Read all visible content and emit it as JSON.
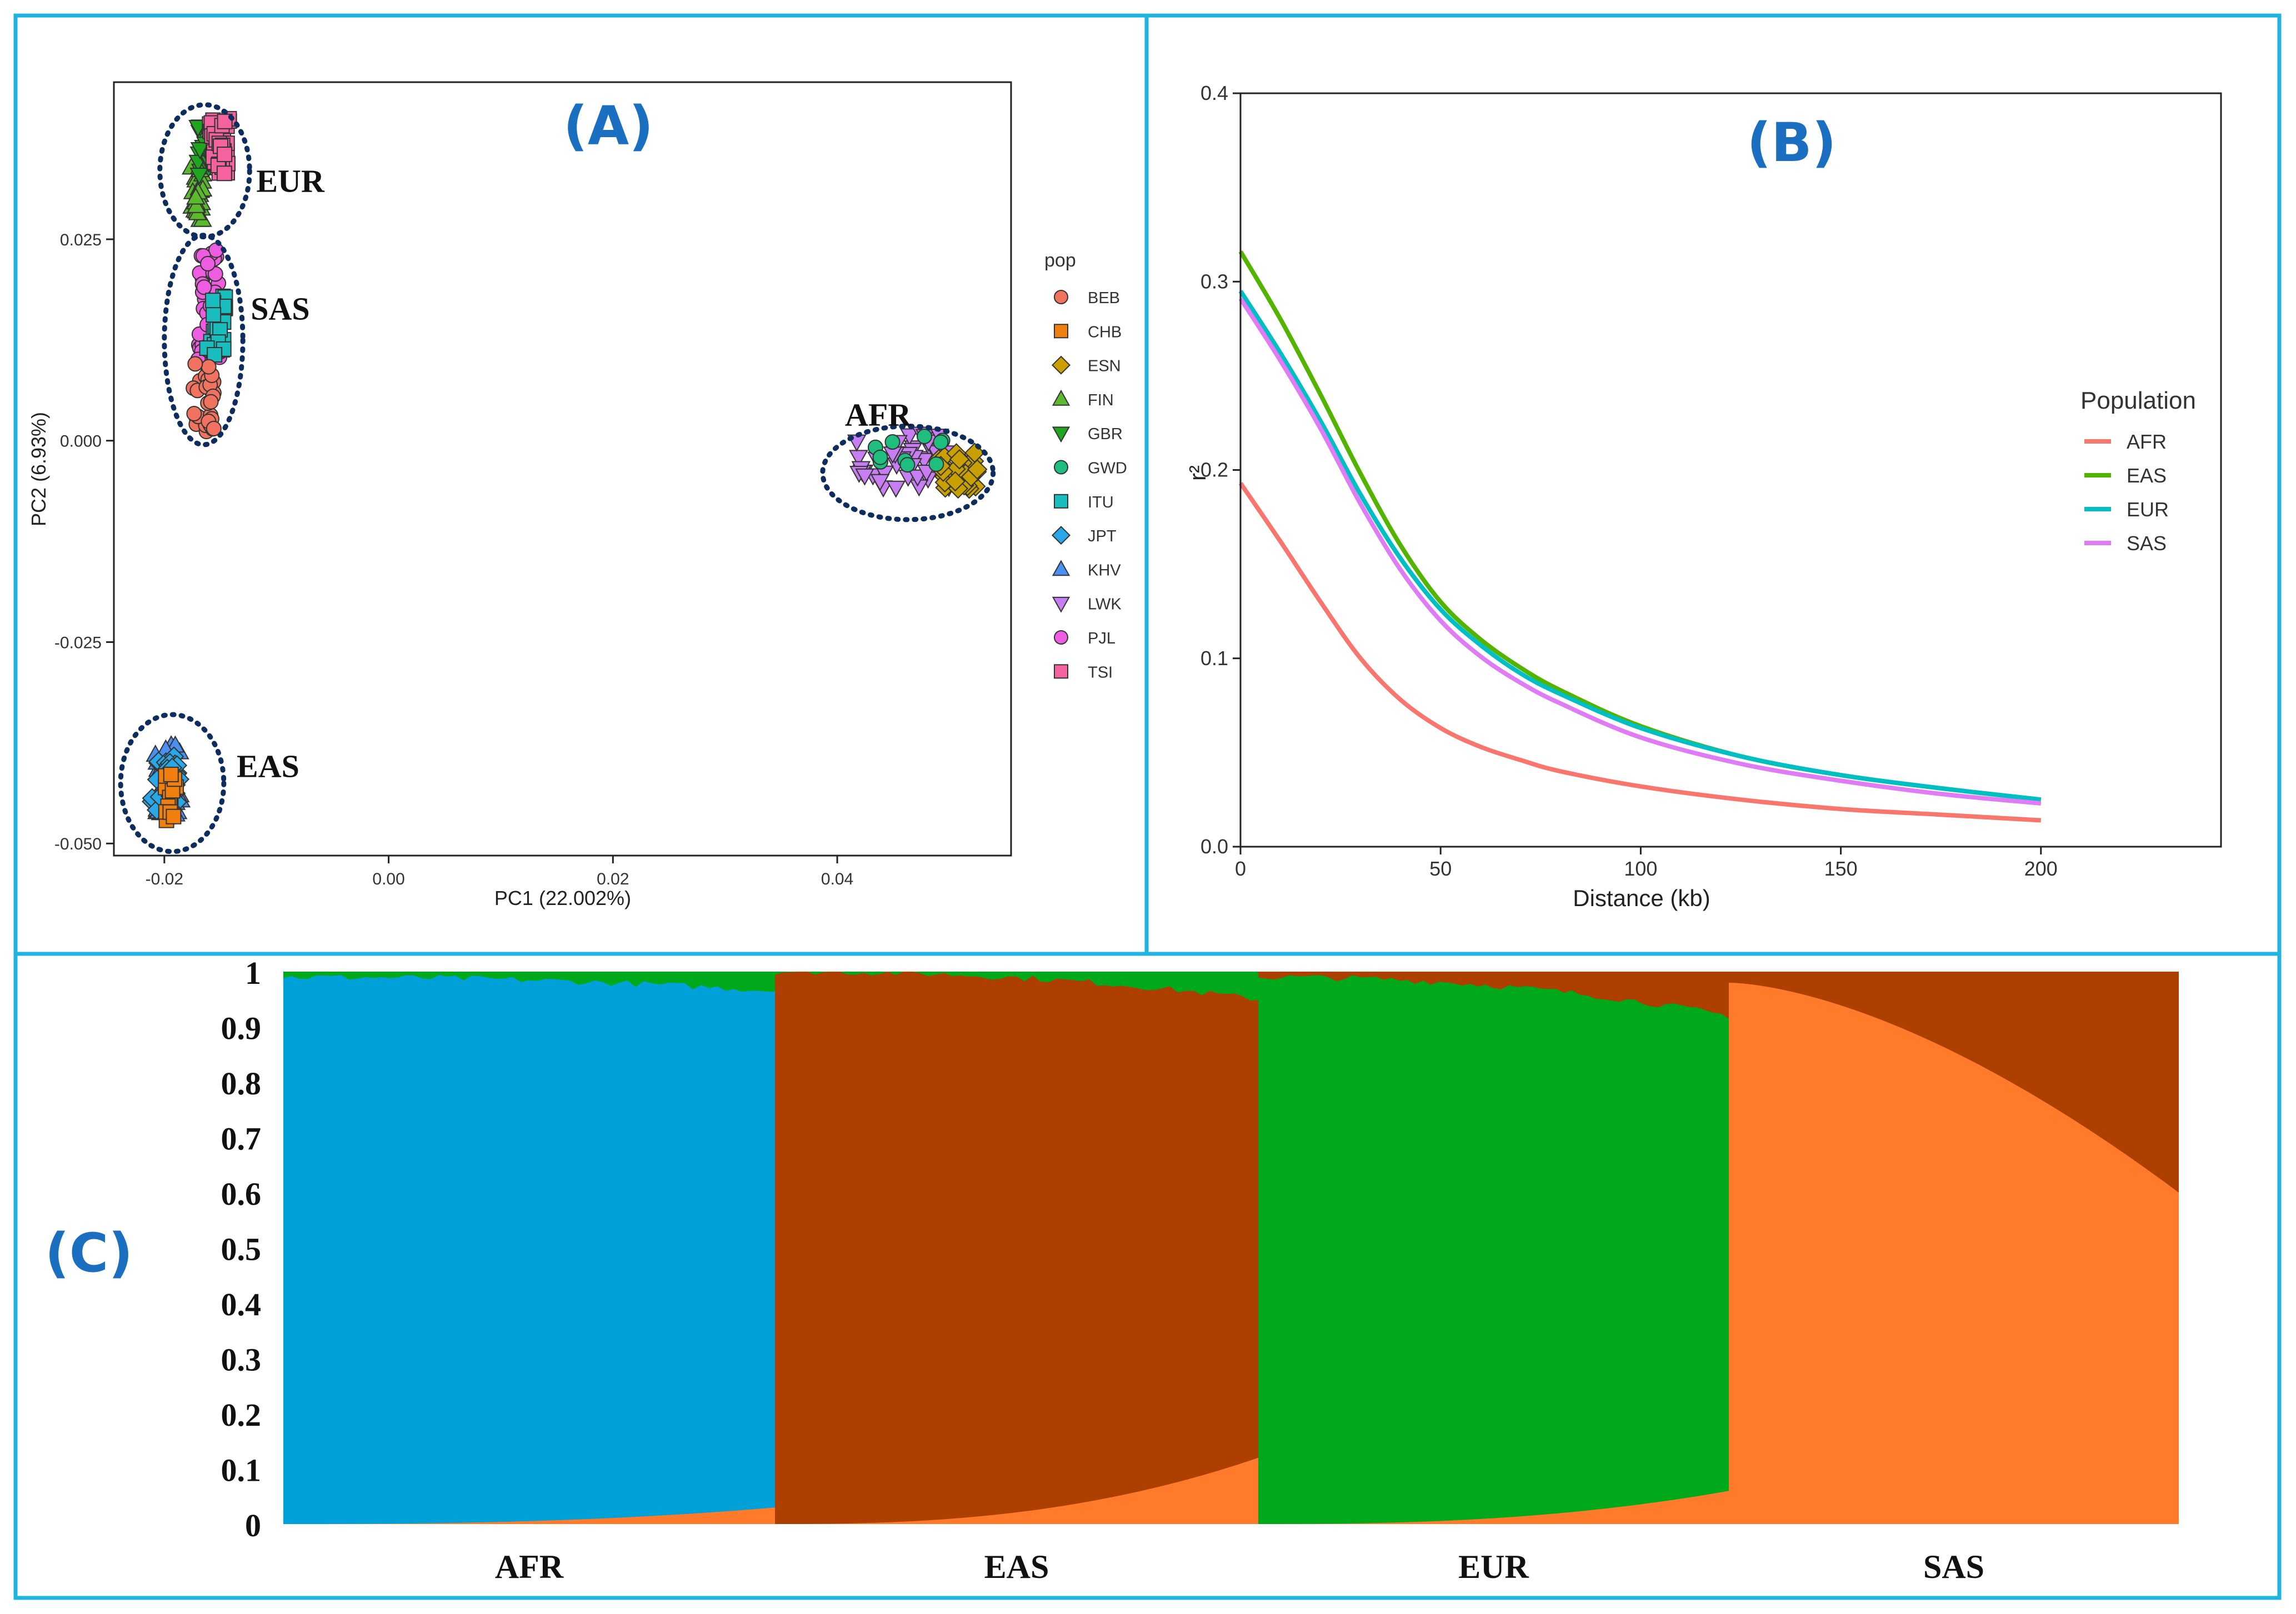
{
  "chart_data": [
    {
      "panel": "A",
      "type": "scatter",
      "panel_label": "(A)",
      "xlabel": "PC1 (22.002%)",
      "ylabel": "PC2 (6.93%)",
      "xlim": [
        -0.0245,
        0.0555
      ],
      "ylim": [
        -0.0515,
        0.0445
      ],
      "x_ticks": [
        -0.02,
        0.0,
        0.02,
        0.04
      ],
      "x_tick_labels": [
        "-0.02",
        "0.00",
        "0.02",
        "0.04"
      ],
      "y_ticks": [
        -0.05,
        -0.025,
        0.0,
        0.025
      ],
      "y_tick_labels": [
        "-0.050",
        "-0.025",
        "0.000",
        "0.025"
      ],
      "legend_title": "pop",
      "legend": [
        {
          "name": "BEB",
          "color": "#f0725f",
          "shape": "circle"
        },
        {
          "name": "CHB",
          "color": "#f07f0f",
          "shape": "square"
        },
        {
          "name": "ESN",
          "color": "#c9a000",
          "shape": "diamond"
        },
        {
          "name": "FIN",
          "color": "#5bb92e",
          "shape": "triangle-up"
        },
        {
          "name": "GBR",
          "color": "#1fa51f",
          "shape": "triangle-down"
        },
        {
          "name": "GWD",
          "color": "#1fbd7e",
          "shape": "circle"
        },
        {
          "name": "ITU",
          "color": "#19bdbd",
          "shape": "square"
        },
        {
          "name": "JPT",
          "color": "#29a7e6",
          "shape": "diamond"
        },
        {
          "name": "KHV",
          "color": "#4b8ff0",
          "shape": "triangle-up"
        },
        {
          "name": "LWK",
          "color": "#c77ef2",
          "shape": "triangle-down"
        },
        {
          "name": "PJL",
          "color": "#ee5ce0",
          "shape": "circle"
        },
        {
          "name": "TSI",
          "color": "#f4629f",
          "shape": "square"
        }
      ],
      "clusters": [
        {
          "label": "EUR",
          "cx": -0.0164,
          "cy": 0.0335,
          "rx": 0.004,
          "ry": 0.0082
        },
        {
          "label": "SAS",
          "cx": -0.0165,
          "cy": 0.0125,
          "rx": 0.0035,
          "ry": 0.013
        },
        {
          "label": "AFR",
          "cx": 0.0463,
          "cy": -0.004,
          "rx": 0.0076,
          "ry": 0.0058
        },
        {
          "label": "EAS",
          "cx": -0.0193,
          "cy": -0.0425,
          "rx": 0.0046,
          "ry": 0.0085
        }
      ],
      "groups": [
        {
          "pop": "FIN",
          "x": [
            -0.0176,
            -0.0165
          ],
          "y": [
            0.027,
            0.0345
          ],
          "n": 30
        },
        {
          "pop": "GBR",
          "x": [
            -0.017,
            -0.0155
          ],
          "y": [
            0.033,
            0.0395
          ],
          "n": 30
        },
        {
          "pop": "TSI",
          "x": [
            -0.016,
            -0.0142
          ],
          "y": [
            0.033,
            0.04
          ],
          "n": 35
        },
        {
          "pop": "PJL",
          "x": [
            -0.017,
            -0.015
          ],
          "y": [
            0.01,
            0.024
          ],
          "n": 35
        },
        {
          "pop": "ITU",
          "x": [
            -0.0162,
            -0.0145
          ],
          "y": [
            0.0105,
            0.018
          ],
          "n": 30
        },
        {
          "pop": "BEB",
          "x": [
            -0.0175,
            -0.0155
          ],
          "y": [
            0.001,
            0.01
          ],
          "n": 30
        },
        {
          "pop": "KHV",
          "x": [
            -0.0208,
            -0.0185
          ],
          "y": [
            -0.0465,
            -0.0375
          ],
          "n": 30
        },
        {
          "pop": "JPT",
          "x": [
            -0.0212,
            -0.0185
          ],
          "y": [
            -0.046,
            -0.039
          ],
          "n": 30
        },
        {
          "pop": "CHB",
          "x": [
            -0.02,
            -0.0188
          ],
          "y": [
            -0.0475,
            -0.0405
          ],
          "n": 20
        },
        {
          "pop": "LWK",
          "x": [
            0.0415,
            0.05
          ],
          "y": [
            -0.006,
            0.001
          ],
          "n": 45
        },
        {
          "pop": "ESN",
          "x": [
            0.049,
            0.0525
          ],
          "y": [
            -0.006,
            -0.0015
          ],
          "n": 30
        },
        {
          "pop": "GWD",
          "x": [
            0.043,
            0.05
          ],
          "y": [
            -0.003,
            0.0012
          ],
          "n": 10
        }
      ]
    },
    {
      "panel": "B",
      "type": "line",
      "panel_label": "(B)",
      "xlabel": "Distance (kb)",
      "ylabel": "r²",
      "xlim": [
        0,
        245
      ],
      "ylim": [
        0,
        0.4
      ],
      "x_ticks": [
        0,
        50,
        100,
        150,
        200
      ],
      "x_tick_labels": [
        "0",
        "50",
        "100",
        "150",
        "200"
      ],
      "y_ticks": [
        0.0,
        0.1,
        0.2,
        0.3,
        0.4
      ],
      "y_tick_labels": [
        "0.0",
        "0.1",
        "0.2",
        "0.3",
        "0.4"
      ],
      "legend_title": "Population",
      "x": [
        0,
        10,
        20,
        30,
        40,
        50,
        60,
        70,
        80,
        100,
        125,
        150,
        175,
        200
      ],
      "series": [
        {
          "name": "AFR",
          "color": "#f8766d",
          "values": [
            0.193,
            0.162,
            0.13,
            0.1,
            0.078,
            0.063,
            0.053,
            0.046,
            0.04,
            0.032,
            0.025,
            0.02,
            0.017,
            0.014
          ]
        },
        {
          "name": "EAS",
          "color": "#53b400",
          "values": [
            0.316,
            0.28,
            0.24,
            0.198,
            0.16,
            0.13,
            0.11,
            0.095,
            0.083,
            0.064,
            0.048,
            0.038,
            0.031,
            0.025
          ]
        },
        {
          "name": "EUR",
          "color": "#00bfc4",
          "values": [
            0.295,
            0.262,
            0.226,
            0.187,
            0.153,
            0.126,
            0.107,
            0.092,
            0.081,
            0.063,
            0.048,
            0.038,
            0.031,
            0.025
          ]
        },
        {
          "name": "SAS",
          "color": "#e07bf6",
          "values": [
            0.291,
            0.258,
            0.222,
            0.182,
            0.147,
            0.12,
            0.101,
            0.087,
            0.076,
            0.058,
            0.044,
            0.035,
            0.028,
            0.023
          ]
        }
      ]
    },
    {
      "panel": "C",
      "type": "area",
      "panel_label": "(C)",
      "y_ticks": [
        0,
        0.1,
        0.2,
        0.3,
        0.4,
        0.5,
        0.6,
        0.7,
        0.8,
        0.9,
        1
      ],
      "y_tick_labels": [
        "0",
        "0.1",
        "0.2",
        "0.3",
        "0.4",
        "0.5",
        "0.6",
        "0.7",
        "0.8",
        "0.9",
        "1"
      ],
      "colors": {
        "K1": "#00a0d8",
        "K2": "#ad3f00",
        "K3": "#00a91b",
        "K4": "#ff7a2a"
      },
      "groups": [
        {
          "label": "AFR",
          "major": "K1",
          "top": "K3",
          "bottom": "K4",
          "major_start": 0.99,
          "major_end": 0.965,
          "bottom_max": 0.03
        },
        {
          "label": "EAS",
          "major": "K2",
          "top": "K3",
          "bottom": "K4",
          "major_start": 1.0,
          "major_end": 0.95,
          "bottom_max": 0.12
        },
        {
          "label": "EUR",
          "major": "K3",
          "top": "K2",
          "bottom": "K4",
          "major_start": 0.99,
          "major_end": 0.92,
          "bottom_max": 0.06
        },
        {
          "label": "SAS",
          "major": "K4",
          "top": "K2",
          "bottom": "K3",
          "major_start": 0.98,
          "major_end": 0.6,
          "bottom_max": 0.0
        }
      ]
    }
  ]
}
